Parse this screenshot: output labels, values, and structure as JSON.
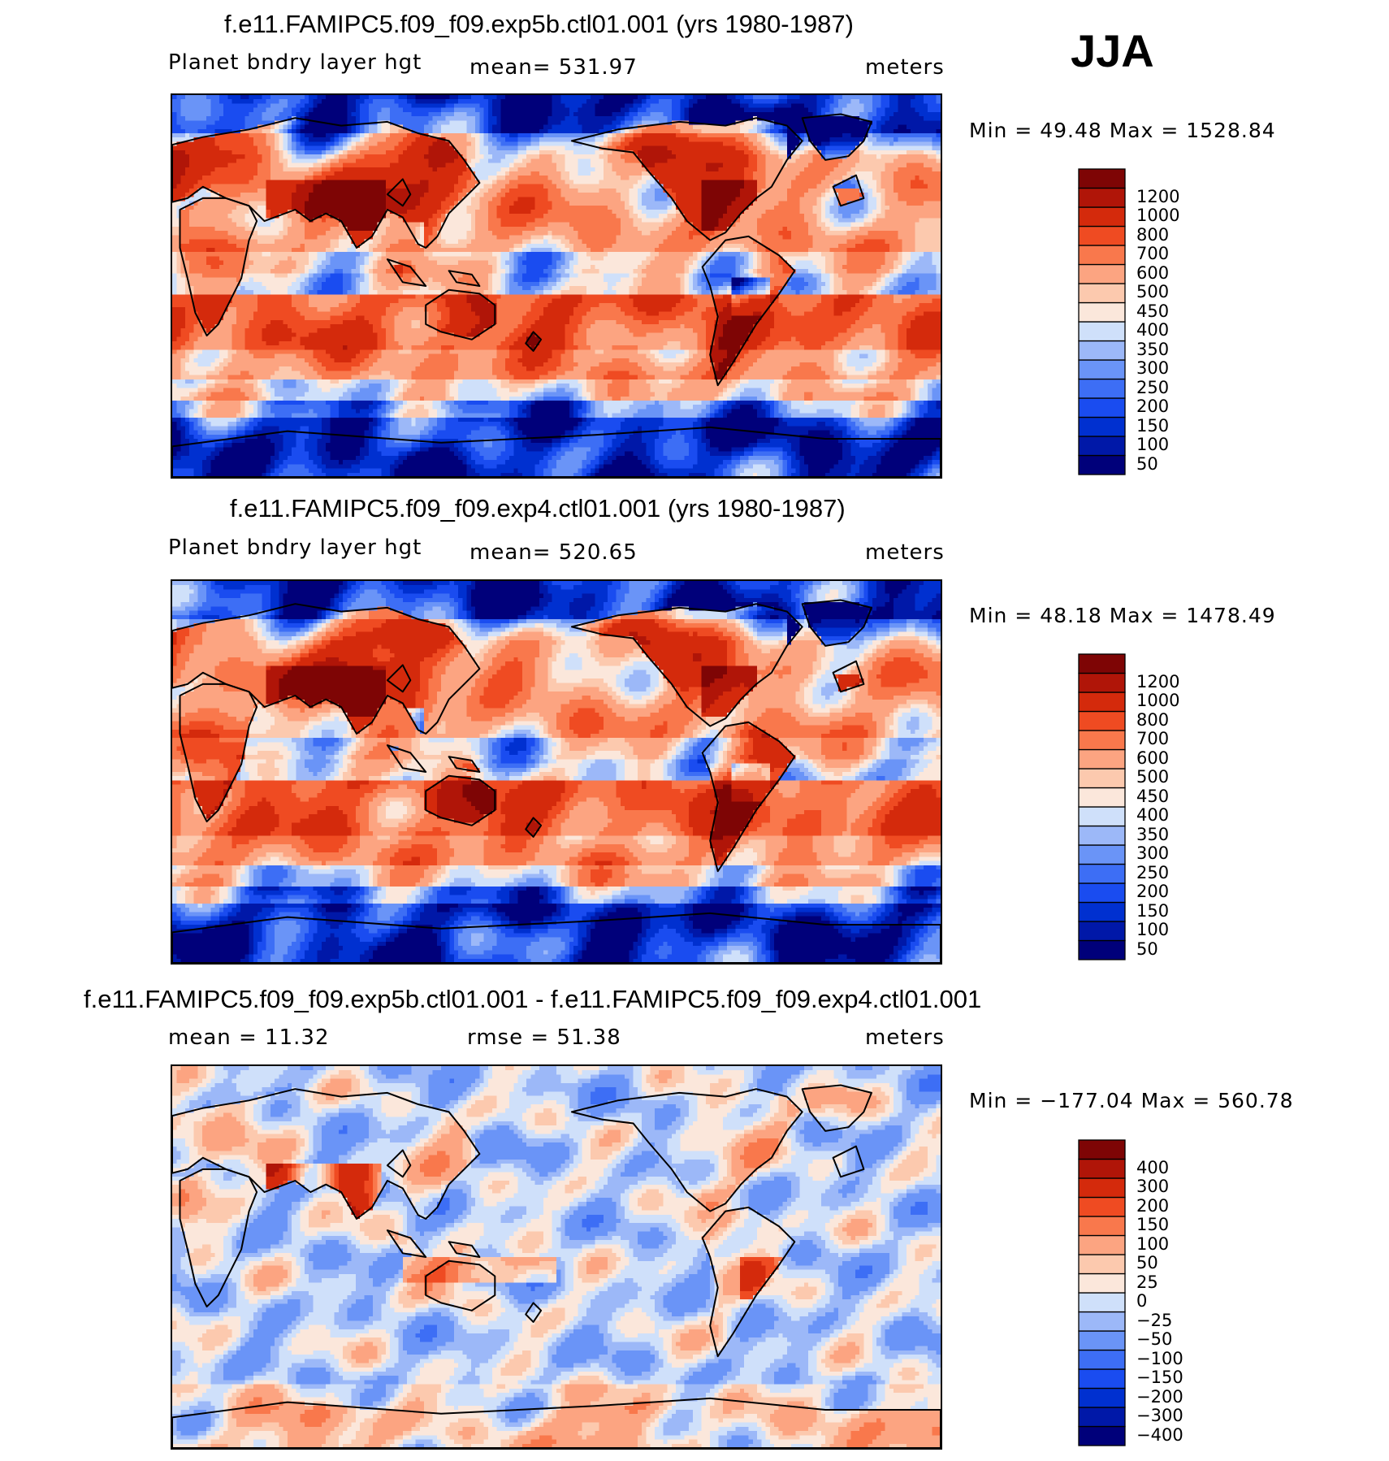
{
  "season": "JJA",
  "panels": [
    {
      "title": "f.e11.FAMIPC5.f09_f09.exp5b.ctl01.001 (yrs 1980-1987)",
      "left_label": "Planet bndry layer hgt",
      "center_label": "mean= 531.97",
      "units": "meters",
      "minmax": "Min =  49.48 Max = 1528.84",
      "kind": "abs"
    },
    {
      "title": "f.e11.FAMIPC5.f09_f09.exp4.ctl01.001 (yrs 1980-1987)",
      "left_label": "Planet bndry layer hgt",
      "center_label": "mean= 520.65",
      "units": "meters",
      "minmax": "Min =  48.18 Max = 1478.49",
      "kind": "abs"
    },
    {
      "title": "f.e11.FAMIPC5.f09_f09.exp5b.ctl01.001 - f.e11.FAMIPC5.f09_f09.exp4.ctl01.001",
      "left_label": "mean =   11.32",
      "center_label": "rmse =   51.38",
      "units": "meters",
      "minmax": "Min = −177.04 Max = 560.78",
      "kind": "diff"
    }
  ],
  "chart_data": [
    {
      "type": "heatmap",
      "title": "f.e11.FAMIPC5.f09_f09.exp5b.ctl01.001 (yrs 1980-1987)",
      "variable": "Planet bndry layer hgt",
      "units": "meters",
      "mean": 531.97,
      "min": 49.48,
      "max": 1528.84,
      "contour_levels": [
        50,
        100,
        150,
        200,
        250,
        300,
        350,
        400,
        450,
        500,
        600,
        700,
        800,
        1000,
        1200
      ],
      "colors": [
        "#00007a",
        "#0018a8",
        "#0030d0",
        "#1a4cf0",
        "#3d6ef5",
        "#6a94f7",
        "#9cb8f8",
        "#cfe0fa",
        "#fbe7db",
        "#fcc9ae",
        "#fca481",
        "#f9784c",
        "#ef4b22",
        "#d42a0c",
        "#b01508",
        "#7e0505"
      ]
    },
    {
      "type": "heatmap",
      "title": "f.e11.FAMIPC5.f09_f09.exp4.ctl01.001 (yrs 1980-1987)",
      "variable": "Planet bndry layer hgt",
      "units": "meters",
      "mean": 520.65,
      "min": 48.18,
      "max": 1478.49,
      "contour_levels": [
        50,
        100,
        150,
        200,
        250,
        300,
        350,
        400,
        450,
        500,
        600,
        700,
        800,
        1000,
        1200
      ],
      "colors": [
        "#00007a",
        "#0018a8",
        "#0030d0",
        "#1a4cf0",
        "#3d6ef5",
        "#6a94f7",
        "#9cb8f8",
        "#cfe0fa",
        "#fbe7db",
        "#fcc9ae",
        "#fca481",
        "#f9784c",
        "#ef4b22",
        "#d42a0c",
        "#b01508",
        "#7e0505"
      ]
    },
    {
      "type": "heatmap",
      "title": "f.e11.FAMIPC5.f09_f09.exp5b.ctl01.001 - f.e11.FAMIPC5.f09_f09.exp4.ctl01.001",
      "units": "meters",
      "mean": 11.32,
      "rmse": 51.38,
      "min": -177.04,
      "max": 560.78,
      "contour_levels": [
        -400,
        -300,
        -200,
        -150,
        -100,
        -50,
        -25,
        0,
        25,
        50,
        100,
        150,
        200,
        300,
        400
      ],
      "contour_labels": [
        "−400",
        "−300",
        "−200",
        "−150",
        "−100",
        "−50",
        "−25",
        "0",
        "25",
        "50",
        "100",
        "150",
        "200",
        "300",
        "400"
      ],
      "colors": [
        "#00007a",
        "#0018a8",
        "#0030d0",
        "#1a4cf0",
        "#3d6ef5",
        "#6a94f7",
        "#9cb8f8",
        "#cfe0fa",
        "#fbe7db",
        "#fcc9ae",
        "#fca481",
        "#f9784c",
        "#ef4b22",
        "#d42a0c",
        "#b01508",
        "#7e0505"
      ]
    }
  ]
}
